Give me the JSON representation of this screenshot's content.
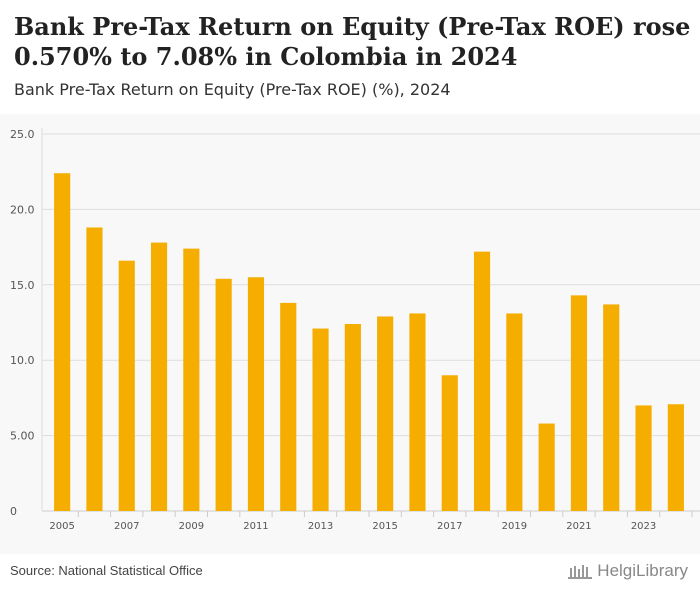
{
  "header": {
    "title": "Bank Pre-Tax Return on Equity (Pre-Tax ROE) rose 0.570% to 7.08% in Colombia in 2024",
    "subtitle": "Bank Pre-Tax Return on Equity (Pre-Tax ROE) (%), 2024"
  },
  "footer": {
    "source": "Source: National Statistical Office",
    "logo_text": "HelgiLibrary"
  },
  "colors": {
    "bar": "#f5ae00",
    "grid": "#dedede",
    "axis_text": "#555555"
  },
  "chart_data": {
    "type": "bar",
    "title": "Bank Pre-Tax Return on Equity (Pre-Tax ROE) (%)",
    "xlabel": "",
    "ylabel": "",
    "categories": [
      "2005",
      "2006",
      "2007",
      "2008",
      "2009",
      "2010",
      "2011",
      "2012",
      "2013",
      "2014",
      "2015",
      "2016",
      "2017",
      "2018",
      "2019",
      "2020",
      "2021",
      "2022",
      "2023",
      "2024"
    ],
    "values": [
      22.4,
      18.8,
      16.6,
      17.8,
      17.4,
      15.4,
      15.5,
      13.8,
      12.1,
      12.4,
      12.9,
      13.1,
      9.0,
      17.2,
      13.1,
      5.8,
      14.3,
      13.7,
      7.0,
      7.08
    ],
    "x_tick_labels": [
      "2005",
      "2007",
      "2009",
      "2011",
      "2013",
      "2015",
      "2017",
      "2019",
      "2021",
      "2023"
    ],
    "y_ticks": [
      0,
      5,
      10,
      15,
      20,
      25
    ],
    "y_tick_labels": [
      "0",
      "5.00",
      "10.0",
      "15.0",
      "20.0",
      "25.0"
    ],
    "ylim": [
      0,
      25
    ],
    "grid": true,
    "legend": "none"
  }
}
